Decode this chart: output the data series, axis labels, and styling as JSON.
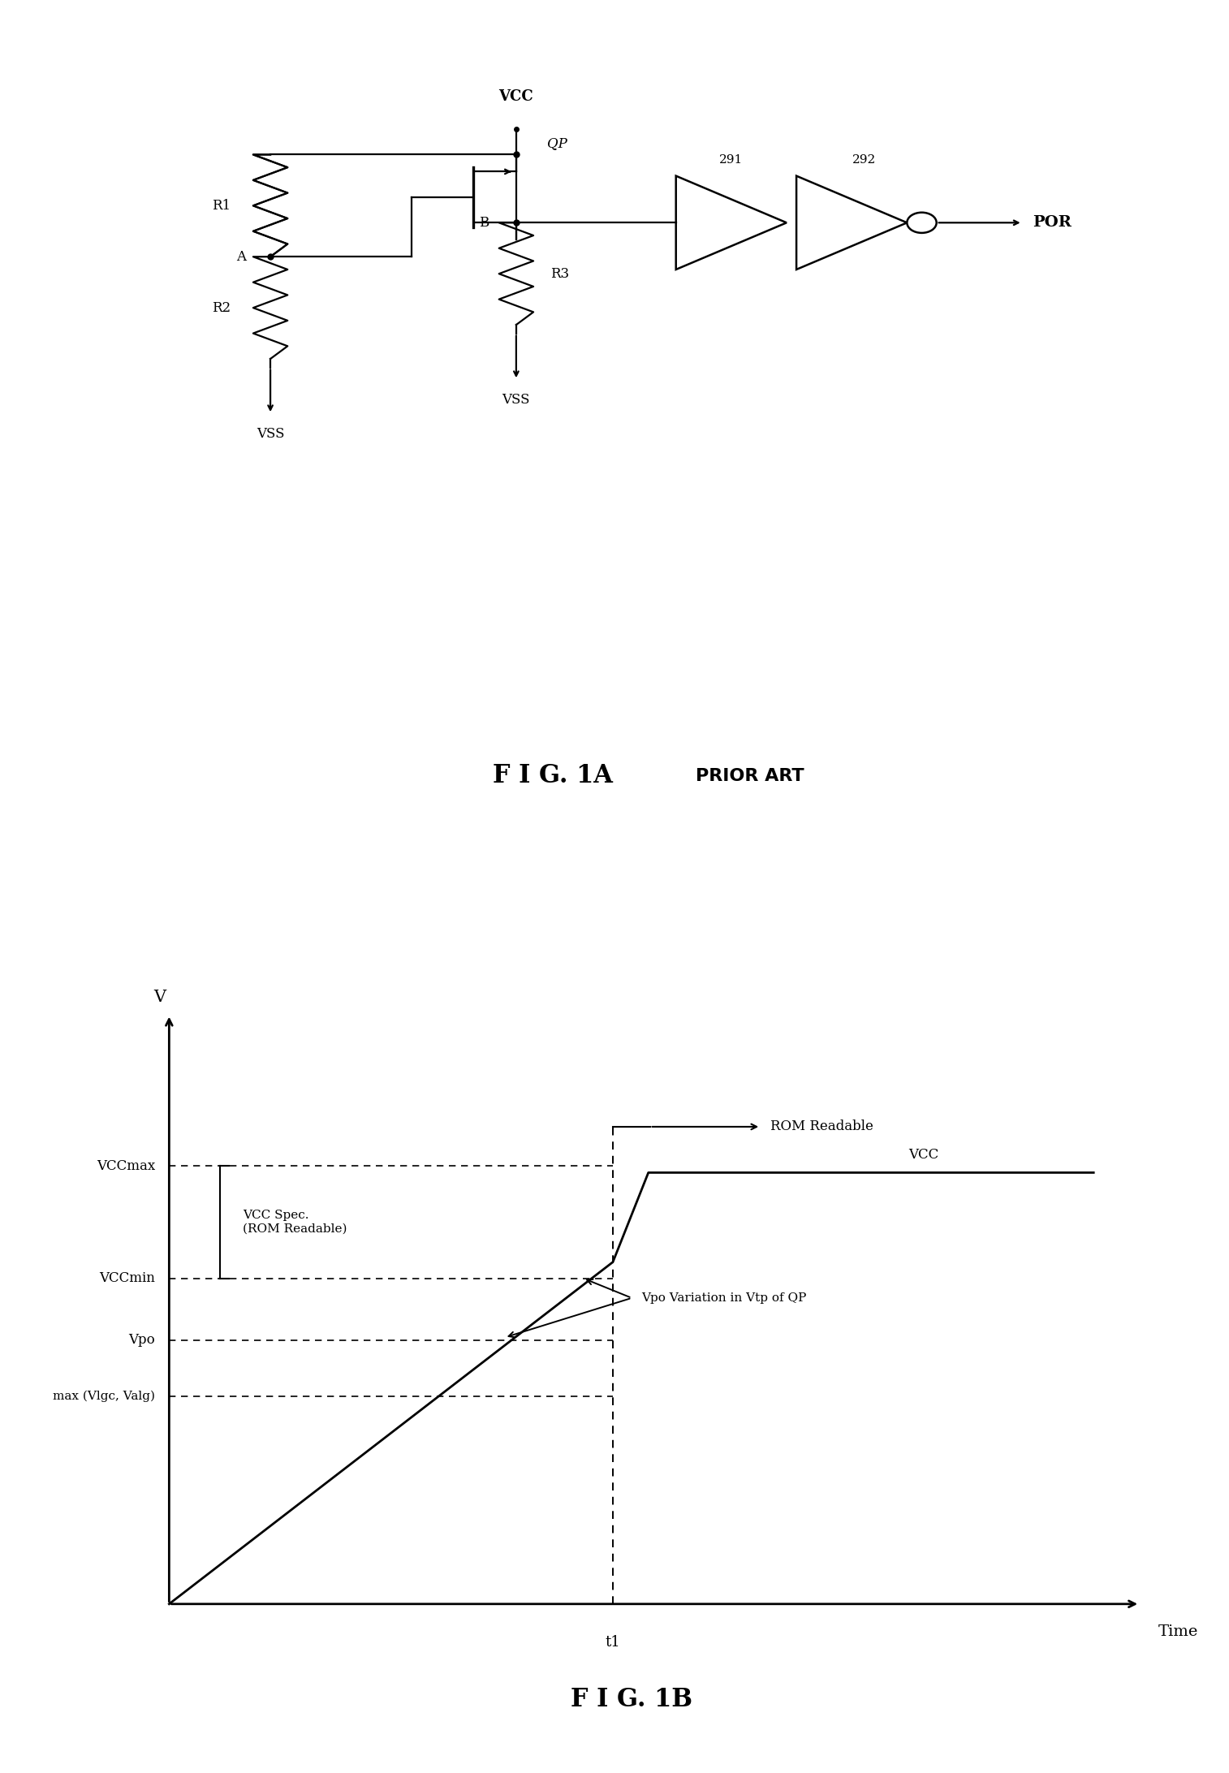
{
  "fig_width": 15.14,
  "fig_height": 21.84,
  "bg_color": "#ffffff",
  "circuit": {
    "vcc_label": "VCC",
    "vss_label1": "VSS",
    "vss_label2": "VSS",
    "qp_label": "QP",
    "r1_label": "R1",
    "r2_label": "R2",
    "r3_label": "R3",
    "a_label": "A",
    "b_label": "B",
    "por_label": "POR",
    "label_291": "291",
    "label_292": "292"
  },
  "graph": {
    "xlabel": "Time",
    "ylabel": "V",
    "vccmax_label": "VCCmax",
    "vccmin_label": "VCCmin",
    "vpo_label": "Vpo",
    "max_vlgc_label": "max (Vlgc, Valg)",
    "vcc_spec_label": "VCC Spec.\n(ROM Readable)",
    "vcc_curve_label": "VCC",
    "rom_readable_label": "ROM Readable",
    "vpo_variation_label": "Vpo Variation in Vtp of QP",
    "t1_label": "t1",
    "vccmax": 0.78,
    "vccmin": 0.58,
    "vpo": 0.47,
    "max_vlgc": 0.37,
    "t1": 0.48
  },
  "fig1a_label": "F I G. 1A",
  "fig1a_prior": "PRIOR ART",
  "fig1b_label": "F I G. 1B"
}
